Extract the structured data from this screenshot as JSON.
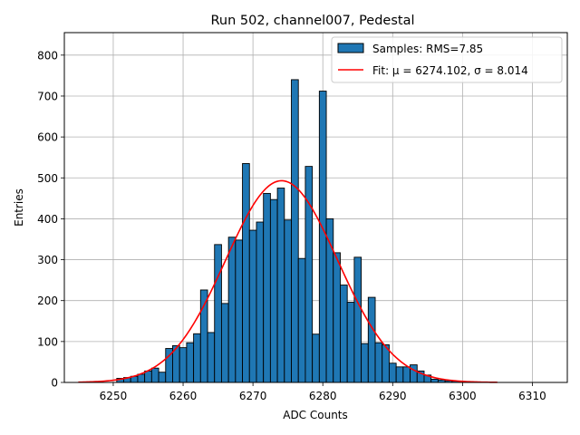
{
  "chart_data": {
    "type": "bar",
    "title": "Run 502, channel007, Pedestal",
    "xlabel": "ADC Counts",
    "ylabel": "Entries",
    "xlim": [
      6243,
      6315
    ],
    "ylim": [
      0,
      855
    ],
    "xticks": [
      6250,
      6260,
      6270,
      6280,
      6290,
      6300,
      6310
    ],
    "yticks": [
      0,
      100,
      200,
      300,
      400,
      500,
      600,
      700,
      800
    ],
    "grid": true,
    "legend_position": "top-right",
    "colors": {
      "bars": "#1f77b4",
      "bar_edge": "#000000",
      "fit": "#ff0000",
      "grid": "#b0b0b0"
    },
    "bin_width": 1,
    "series": [
      {
        "name": "Samples: RMS=7.85",
        "kind": "histogram",
        "bins": [
          {
            "x": 6251,
            "y": 10
          },
          {
            "x": 6252,
            "y": 12
          },
          {
            "x": 6253,
            "y": 15
          },
          {
            "x": 6254,
            "y": 20
          },
          {
            "x": 6255,
            "y": 28
          },
          {
            "x": 6256,
            "y": 35
          },
          {
            "x": 6257,
            "y": 25
          },
          {
            "x": 6258,
            "y": 83
          },
          {
            "x": 6259,
            "y": 90
          },
          {
            "x": 6260,
            "y": 85
          },
          {
            "x": 6261,
            "y": 97
          },
          {
            "x": 6262,
            "y": 119
          },
          {
            "x": 6263,
            "y": 226
          },
          {
            "x": 6264,
            "y": 122
          },
          {
            "x": 6265,
            "y": 337
          },
          {
            "x": 6266,
            "y": 193
          },
          {
            "x": 6267,
            "y": 355
          },
          {
            "x": 6268,
            "y": 348
          },
          {
            "x": 6269,
            "y": 535
          },
          {
            "x": 6270,
            "y": 372
          },
          {
            "x": 6271,
            "y": 392
          },
          {
            "x": 6272,
            "y": 462
          },
          {
            "x": 6273,
            "y": 447
          },
          {
            "x": 6274,
            "y": 475
          },
          {
            "x": 6275,
            "y": 397
          },
          {
            "x": 6276,
            "y": 740
          },
          {
            "x": 6277,
            "y": 303
          },
          {
            "x": 6278,
            "y": 528
          },
          {
            "x": 6279,
            "y": 118
          },
          {
            "x": 6280,
            "y": 712
          },
          {
            "x": 6281,
            "y": 400
          },
          {
            "x": 6282,
            "y": 317
          },
          {
            "x": 6283,
            "y": 238
          },
          {
            "x": 6284,
            "y": 196
          },
          {
            "x": 6285,
            "y": 306
          },
          {
            "x": 6286,
            "y": 95
          },
          {
            "x": 6287,
            "y": 208
          },
          {
            "x": 6288,
            "y": 97
          },
          {
            "x": 6289,
            "y": 92
          },
          {
            "x": 6290,
            "y": 47
          },
          {
            "x": 6291,
            "y": 38
          },
          {
            "x": 6292,
            "y": 38
          },
          {
            "x": 6293,
            "y": 43
          },
          {
            "x": 6294,
            "y": 28
          },
          {
            "x": 6295,
            "y": 18
          },
          {
            "x": 6296,
            "y": 8
          },
          {
            "x": 6297,
            "y": 6
          },
          {
            "x": 6298,
            "y": 4
          },
          {
            "x": 6299,
            "y": 3
          },
          {
            "x": 6300,
            "y": 2
          }
        ]
      },
      {
        "name": "Fit: μ = 6274.102, σ = 8.014",
        "kind": "gaussian",
        "amplitude": 493,
        "mu": 6274.102,
        "sigma": 8.014,
        "x_range": [
          6245,
          6305
        ]
      }
    ]
  }
}
